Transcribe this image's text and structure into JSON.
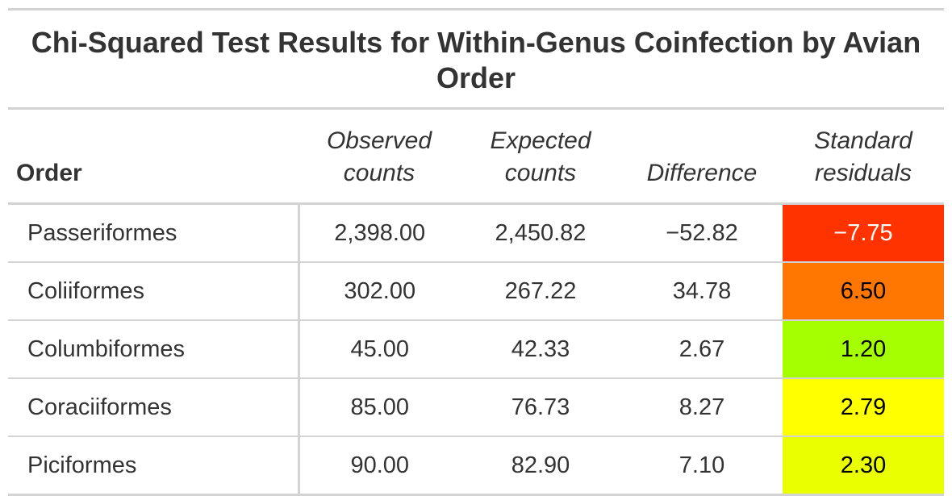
{
  "title": "Chi-Squared Test Results for Within-Genus Coinfection by Avian Order",
  "columns": {
    "order": "Order",
    "observed": "Observed counts",
    "expected": "Expected counts",
    "difference": "Difference",
    "residuals": "Standard residuals"
  },
  "rows": [
    {
      "order": "Passeriformes",
      "observed": "2,398.00",
      "expected": "2,450.82",
      "difference": "−52.82",
      "residual": "−7.75",
      "residual_color": "#ff3300",
      "residual_text_color": "#ffffff"
    },
    {
      "order": "Coliiformes",
      "observed": "302.00",
      "expected": "267.22",
      "difference": "34.78",
      "residual": "6.50",
      "residual_color": "#ff7700",
      "residual_text_color": "#000000"
    },
    {
      "order": "Columbiformes",
      "observed": "45.00",
      "expected": "42.33",
      "difference": "2.67",
      "residual": "1.20",
      "residual_color": "#a6ff00",
      "residual_text_color": "#000000"
    },
    {
      "order": "Coraciiformes",
      "observed": "85.00",
      "expected": "76.73",
      "difference": "8.27",
      "residual": "2.79",
      "residual_color": "#ffff00",
      "residual_text_color": "#000000"
    },
    {
      "order": "Piciformes",
      "observed": "90.00",
      "expected": "82.90",
      "difference": "7.10",
      "residual": "2.30",
      "residual_color": "#eaff00",
      "residual_text_color": "#000000"
    }
  ]
}
